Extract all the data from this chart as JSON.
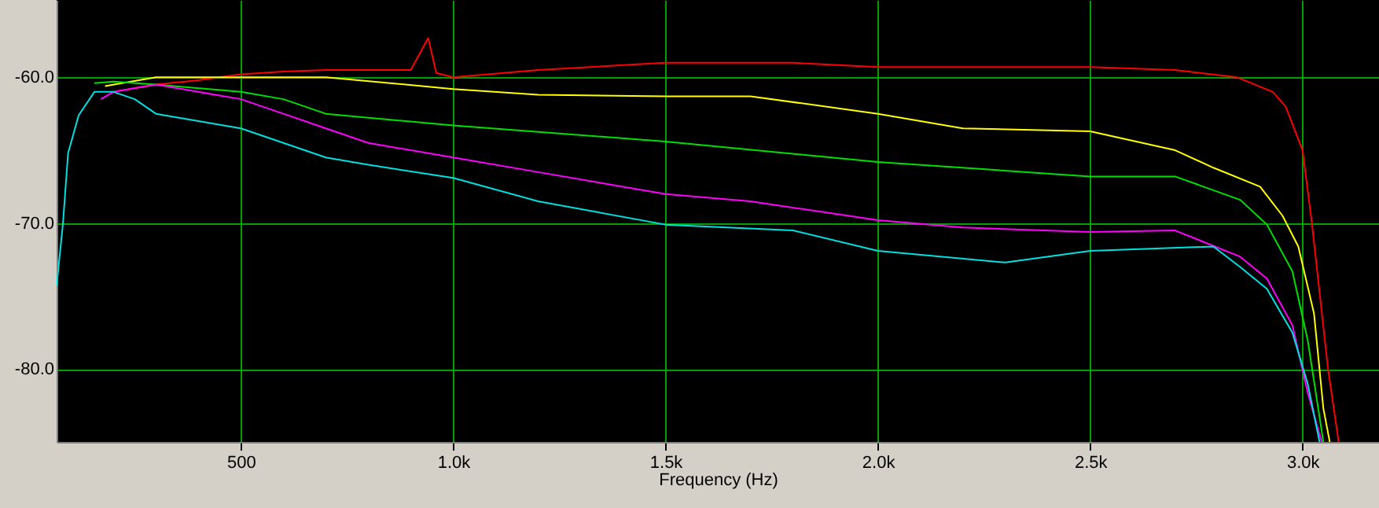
{
  "chart_data": {
    "type": "line",
    "xlabel": "Frequency (Hz)",
    "xlim": [
      66,
      3180
    ],
    "ylim": [
      -85,
      -54.7
    ],
    "xticks": [
      500,
      {
        "value": 1000,
        "label": "1.0k"
      },
      {
        "value": 1500,
        "label": "1.5k"
      },
      {
        "value": 2000,
        "label": "2.0k"
      },
      {
        "value": 2500,
        "label": "2.5k"
      },
      {
        "value": 3000,
        "label": "3.0k"
      }
    ],
    "yticks": [
      {
        "value": -60,
        "label": "-60.0"
      },
      {
        "value": -70,
        "label": "-70.0"
      },
      {
        "value": -80,
        "label": "-80.0"
      }
    ],
    "grid": true,
    "marker": "none",
    "line_style": "solid",
    "series": [
      {
        "color": "#ff0000",
        "x": [
          200,
          300,
          400,
          500,
          600,
          700,
          800,
          900,
          941,
          960,
          1000,
          1200,
          1500,
          1800,
          2000,
          2300,
          2500,
          2700,
          2846,
          2930,
          2960,
          3000,
          3022,
          3060,
          3085
        ],
        "values": [
          -61,
          -60.5,
          -60.2,
          -59.8,
          -59.6,
          -59.5,
          -59.5,
          -59.5,
          -57.3,
          -59.7,
          -60,
          -59.5,
          -59,
          -59,
          -59.3,
          -59.3,
          -59.3,
          -59.5,
          -60,
          -61,
          -62,
          -65,
          -70,
          -80,
          -85
        ]
      },
      {
        "color": "#ffff00",
        "x": [
          180,
          300,
          500,
          700,
          1000,
          1200,
          1500,
          1700,
          2000,
          2200,
          2500,
          2700,
          2790,
          2900,
          2953,
          2990,
          3027,
          3049,
          3064
        ],
        "values": [
          -60.6,
          -60,
          -60,
          -60,
          -60.8,
          -61.2,
          -61.3,
          -61.3,
          -62.5,
          -63.5,
          -63.7,
          -65,
          -66.2,
          -67.5,
          -69.5,
          -71.6,
          -76.2,
          -82.7,
          -85
        ]
      },
      {
        "color": "#00e000",
        "x": [
          155,
          200,
          300,
          500,
          600,
          700,
          1000,
          1500,
          2000,
          2500,
          2700,
          2853,
          2916,
          2976,
          3012,
          3049
        ],
        "values": [
          -60.4,
          -60.3,
          -60.5,
          -61,
          -61.5,
          -62.5,
          -63.3,
          -64.4,
          -65.8,
          -66.8,
          -66.8,
          -68.4,
          -70.1,
          -73.3,
          -78,
          -85
        ]
      },
      {
        "color": "#ff00ff",
        "x": [
          170,
          200,
          300,
          400,
          500,
          600,
          700,
          800,
          1000,
          1200,
          1500,
          1700,
          2000,
          2200,
          2500,
          2700,
          2853,
          2916,
          2976,
          3012,
          3045
        ],
        "values": [
          -61.5,
          -61,
          -60.5,
          -61,
          -61.5,
          -62.5,
          -63.5,
          -64.5,
          -65.5,
          -66.5,
          -68,
          -68.5,
          -69.8,
          -70.3,
          -70.6,
          -70.5,
          -72.3,
          -73.8,
          -77,
          -81.6,
          -85
        ]
      },
      {
        "color": "#00e0e0",
        "x": [
          66,
          81,
          93,
          118,
          155,
          200,
          250,
          300,
          400,
          500,
          600,
          700,
          800,
          1000,
          1200,
          1500,
          1800,
          2000,
          2300,
          2500,
          2790,
          2853,
          2916,
          2976,
          3012,
          3040
        ],
        "values": [
          -74.3,
          -70,
          -65.2,
          -62.6,
          -61,
          -61,
          -61.5,
          -62.5,
          -63,
          -63.5,
          -64.5,
          -65.5,
          -66,
          -66.9,
          -68.5,
          -70.1,
          -70.5,
          -71.9,
          -72.7,
          -71.9,
          -71.6,
          -73,
          -74.5,
          -77.5,
          -81,
          -85
        ]
      }
    ]
  }
}
